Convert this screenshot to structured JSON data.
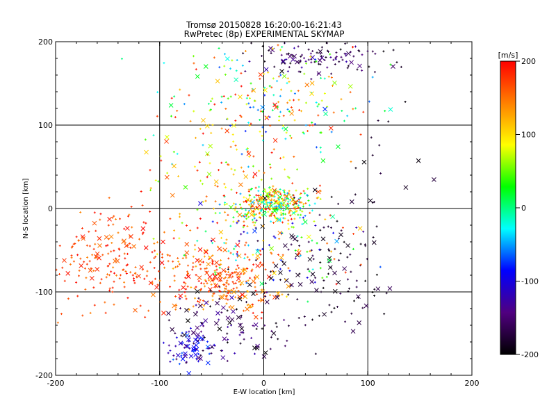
{
  "chart_data": {
    "type": "scatter",
    "title": "Tromsø 20150828 16:20:00-16:21:43",
    "subtitle": "RwPretec (8p) EXPERIMENTAL SKYMAP",
    "xlabel": "E-W location [km]",
    "ylabel": "N-S location [km]",
    "xlim": [
      -200,
      200
    ],
    "ylim": [
      -200,
      200
    ],
    "xticks": [
      "-200",
      "-100",
      "0",
      "100",
      "200"
    ],
    "yticks": [
      "-200",
      "-100",
      "0",
      "100",
      "200"
    ],
    "grid": true,
    "colorbar": {
      "label": "[m/s]",
      "range": [
        -200,
        200
      ],
      "ticks": [
        "200",
        "100",
        "0",
        "-100",
        "-200"
      ],
      "colors": [
        "#ff0000",
        "#ff8000",
        "#ffff00",
        "#00ff00",
        "#00ffff",
        "#0000ff",
        "#500080",
        "#000000"
      ]
    },
    "marker_types": [
      "plus",
      "cross"
    ],
    "clusters": [
      {
        "cx": 10,
        "cy": 5,
        "sx": 18,
        "sy": 10,
        "n": 320,
        "vmin": -60,
        "vmax": 200,
        "cross": 0.08
      },
      {
        "cx": -40,
        "cy": -85,
        "sx": 25,
        "sy": 18,
        "n": 260,
        "vmin": 120,
        "vmax": 200,
        "cross": 0.2
      },
      {
        "cx": -145,
        "cy": -60,
        "sx": 30,
        "sy": 30,
        "n": 200,
        "vmin": 140,
        "vmax": 200,
        "cross": 0.18
      },
      {
        "cx": -70,
        "cy": -165,
        "sx": 12,
        "sy": 12,
        "n": 60,
        "vmin": -140,
        "vmax": -60,
        "cross": 0.4
      },
      {
        "cx": -40,
        "cy": -140,
        "sx": 30,
        "sy": 22,
        "n": 110,
        "vmin": -200,
        "vmax": -120,
        "cross": 0.4
      },
      {
        "cx": 60,
        "cy": -80,
        "sx": 35,
        "sy": 35,
        "n": 120,
        "vmin": -200,
        "vmax": -160,
        "cross": 0.25
      },
      {
        "cx": 50,
        "cy": 180,
        "sx": 35,
        "sy": 10,
        "n": 110,
        "vmin": -200,
        "vmax": -120,
        "cross": 0.15
      },
      {
        "cx": 0,
        "cy": 130,
        "sx": 45,
        "sy": 35,
        "n": 220,
        "vmin": -80,
        "vmax": 200,
        "cross": 0.12
      },
      {
        "cx": -30,
        "cy": 40,
        "sx": 45,
        "sy": 35,
        "n": 120,
        "vmin": 40,
        "vmax": 200,
        "cross": 0.15
      },
      {
        "cx": 10,
        "cy": -40,
        "sx": 45,
        "sy": 30,
        "n": 160,
        "vmin": -140,
        "vmax": 200,
        "cross": 0.15
      },
      {
        "cx": 110,
        "cy": 20,
        "sx": 50,
        "sy": 60,
        "n": 30,
        "vmin": -200,
        "vmax": -170,
        "cross": 0.3
      }
    ]
  }
}
